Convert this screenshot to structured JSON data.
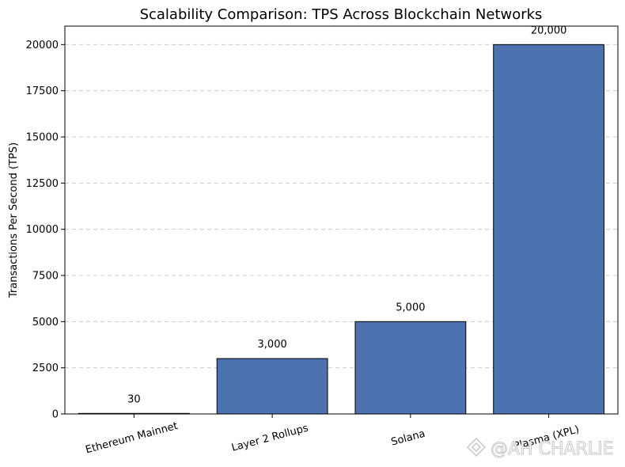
{
  "chart_data": {
    "type": "bar",
    "title": "Scalability Comparison: TPS Across Blockchain Networks",
    "xlabel": "",
    "ylabel": "Transactions Per Second (TPS)",
    "categories": [
      "Ethereum Mainnet",
      "Layer 2 Rollups",
      "Solana",
      "Plasma (XPL)"
    ],
    "values": [
      30,
      3000,
      5000,
      20000
    ],
    "data_labels": [
      "30",
      "3,000",
      "5,000",
      "20,000"
    ],
    "ylim": [
      0,
      21000
    ],
    "yticks": [
      0,
      2500,
      5000,
      7500,
      10000,
      12500,
      15000,
      17500,
      20000
    ],
    "ytick_labels": [
      "0",
      "2500",
      "5000",
      "7500",
      "10000",
      "12500",
      "15000",
      "17500",
      "20000"
    ],
    "grid": "y-dashed",
    "bar_color": "#4c72b0",
    "edge_color": "#000000"
  },
  "watermark": {
    "text": "@AH CHARLIE"
  }
}
